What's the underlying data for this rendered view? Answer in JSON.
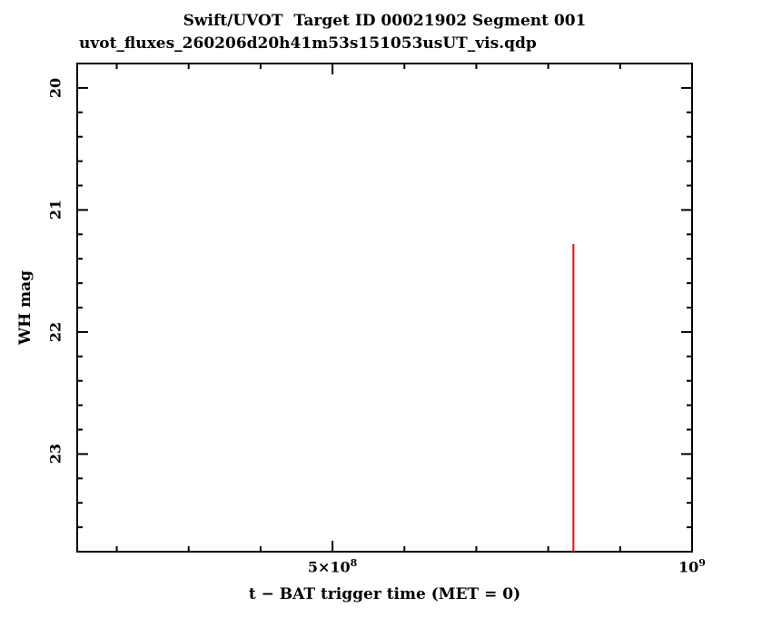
{
  "chart_data": {
    "type": "line",
    "title": "Swift/UVOT  Target ID 00021902 Segment 001",
    "subtitle": "uvot_fluxes_260206d20h41m53s151053usUT_vis.qdp",
    "xlabel": "t − BAT trigger time (MET = 0)",
    "ylabel": "WH mag",
    "background": "#ffffff",
    "frame_color": "#000000",
    "y_inverted": true,
    "xlim": [
      145000000,
      1000000000
    ],
    "ylim_top": 19.8,
    "ylim_bottom": 23.8,
    "x_major_ticks": [
      500000000,
      1000000000
    ],
    "x_major_labels": [
      {
        "base": "5×10",
        "sup": "8"
      },
      {
        "base": "10",
        "sup": "9"
      }
    ],
    "x_minor_step": 100000000,
    "y_major_ticks": [
      20,
      21,
      22,
      23
    ],
    "y_major_labels": [
      "20",
      "21",
      "22",
      "23"
    ],
    "y_minor_step": 0.2,
    "legend": "none",
    "grid": false,
    "series": [
      {
        "name": "WH mag measurement bar",
        "color": "#ff0000",
        "segments": [
          {
            "x": 835000000,
            "y_from": 21.28,
            "y_to": 23.8
          }
        ]
      }
    ]
  }
}
